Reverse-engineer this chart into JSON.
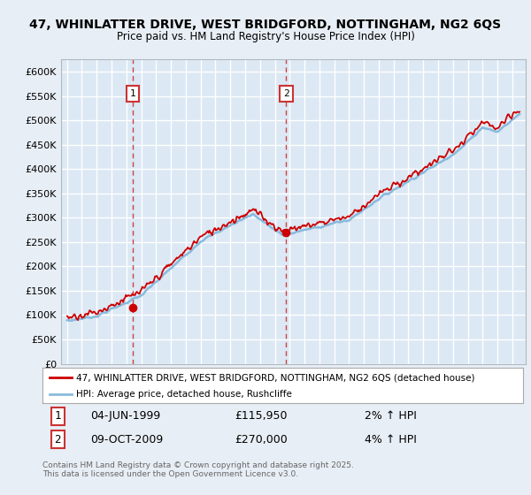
{
  "title_line1": "47, WHINLATTER DRIVE, WEST BRIDGFORD, NOTTINGHAM, NG2 6QS",
  "title_line2": "Price paid vs. HM Land Registry's House Price Index (HPI)",
  "bg_color": "#e8eef5",
  "plot_bg_color": "#dce8f4",
  "grid_color": "#ffffff",
  "red_color": "#cc0000",
  "blue_color": "#88bbdd",
  "ylim": [
    0,
    625000
  ],
  "yticks": [
    0,
    50000,
    100000,
    150000,
    200000,
    250000,
    300000,
    350000,
    400000,
    450000,
    500000,
    550000,
    600000
  ],
  "ytick_labels": [
    "£0",
    "£50K",
    "£100K",
    "£150K",
    "£200K",
    "£250K",
    "£300K",
    "£350K",
    "£400K",
    "£450K",
    "£500K",
    "£550K",
    "£600K"
  ],
  "marker1_date": "04-JUN-1999",
  "marker1_price": 115950,
  "marker1_hpi": "2% ↑ HPI",
  "marker1_x": 1999.42,
  "marker2_date": "09-OCT-2009",
  "marker2_price": 270000,
  "marker2_hpi": "4% ↑ HPI",
  "marker2_x": 2009.77,
  "legend_label1": "47, WHINLATTER DRIVE, WEST BRIDGFORD, NOTTINGHAM, NG2 6QS (detached house)",
  "legend_label2": "HPI: Average price, detached house, Rushcliffe",
  "footnote": "Contains HM Land Registry data © Crown copyright and database right 2025.\nThis data is licensed under the Open Government Licence v3.0."
}
